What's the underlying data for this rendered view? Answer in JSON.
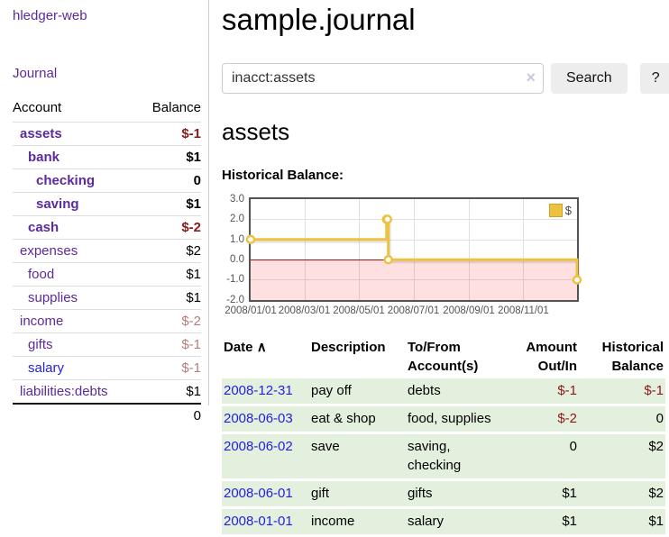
{
  "colors": {
    "link_purple": "#5c2a9e",
    "link_blue": "#2222dd",
    "negative_strong": "#8b1a1a",
    "negative_muted": "#b97c7c",
    "register_row_green": "#e4f0de",
    "chart_series_gold": "#edc240",
    "chart_negative_fill": "rgba(255,0,0,0.12)",
    "chart_zero_line": "#951515",
    "chart_border": "#545454"
  },
  "app": {
    "title": "hledger-web"
  },
  "sidebar": {
    "journal_link": "Journal",
    "accounts": {
      "headers": [
        "Account",
        "Balance"
      ],
      "rows": [
        {
          "account": "assets",
          "balance": "$-1",
          "indent": 1,
          "bold": true,
          "account_color": "purple",
          "balance_class": "neg-strong"
        },
        {
          "account": "bank",
          "balance": "$1",
          "indent": 2,
          "bold": true,
          "account_color": "purple",
          "balance_class": ""
        },
        {
          "account": "checking",
          "balance": "0",
          "indent": 3,
          "bold": true,
          "account_color": "purple",
          "balance_class": ""
        },
        {
          "account": "saving",
          "balance": "$1",
          "indent": 3,
          "bold": true,
          "account_color": "purple",
          "balance_class": ""
        },
        {
          "account": "cash",
          "balance": "$-2",
          "indent": 2,
          "bold": true,
          "account_color": "purple",
          "balance_class": "neg-strong"
        },
        {
          "account": "expenses",
          "balance": "$2",
          "indent": 1,
          "bold": false,
          "account_color": "purple",
          "balance_class": ""
        },
        {
          "account": "food",
          "balance": "$1",
          "indent": 2,
          "bold": false,
          "account_color": "purple",
          "balance_class": ""
        },
        {
          "account": "supplies",
          "balance": "$1",
          "indent": 2,
          "bold": false,
          "account_color": "purple",
          "balance_class": ""
        },
        {
          "account": "income",
          "balance": "$-2",
          "indent": 1,
          "bold": false,
          "account_color": "purple",
          "balance_class": "neg-muted"
        },
        {
          "account": "gifts",
          "balance": "$-1",
          "indent": 2,
          "bold": false,
          "account_color": "purple",
          "balance_class": "neg-muted"
        },
        {
          "account": "salary",
          "balance": "$-1",
          "indent": 2,
          "bold": false,
          "account_color": "blue",
          "balance_class": "neg-muted"
        },
        {
          "account": "liabilities:debts",
          "balance": "$1",
          "indent": 1,
          "bold": false,
          "account_color": "purple",
          "balance_class": ""
        }
      ],
      "total": "0"
    }
  },
  "main": {
    "title": "sample.journal",
    "search": {
      "value": "inacct:assets",
      "clear_icon": "×",
      "search_button": "Search",
      "help_button": "?"
    },
    "account_heading": "assets",
    "register": {
      "headers": [
        "Date",
        "Description",
        "To/From Account(s)",
        "Amount Out/In",
        "Historical Balance"
      ],
      "sort_icon": "∧",
      "rows": [
        {
          "date": "2008-12-31",
          "description": "pay off",
          "accounts": "debts",
          "amount": "$-1",
          "amount_neg": true,
          "balance": "$-1",
          "balance_neg": true
        },
        {
          "date": "2008-06-03",
          "description": "eat & shop",
          "accounts": "food, supplies",
          "amount": "$-2",
          "amount_neg": true,
          "balance": "0",
          "balance_neg": false
        },
        {
          "date": "2008-06-02",
          "description": "save",
          "accounts": "saving, checking",
          "amount": "0",
          "amount_neg": false,
          "balance": "$2",
          "balance_neg": false
        },
        {
          "date": "2008-06-01",
          "description": "gift",
          "accounts": "gifts",
          "amount": "$1",
          "amount_neg": false,
          "balance": "$2",
          "balance_neg": false
        },
        {
          "date": "2008-01-01",
          "description": "income",
          "accounts": "salary",
          "amount": "$1",
          "amount_neg": false,
          "balance": "$1",
          "balance_neg": false
        }
      ]
    }
  },
  "chart_data": {
    "type": "line",
    "step": true,
    "title": "Historical Balance:",
    "xlim": [
      "2008-01-01",
      "2008-12-31"
    ],
    "ylim": [
      -2,
      3
    ],
    "x_ticks": [
      "2008/01/01",
      "2008/03/01",
      "2008/05/01",
      "2008/07/01",
      "2008/09/01",
      "2008/11/01"
    ],
    "y_ticks": [
      "3.0",
      "2.0",
      "1.0",
      "0.0",
      "-1.0",
      "-2.0"
    ],
    "grid": true,
    "legend": {
      "label": "$",
      "position": "top-right"
    },
    "series": [
      {
        "name": "$",
        "color": "#edc240",
        "points": [
          [
            "2008-01-01",
            1
          ],
          [
            "2008-06-01",
            2
          ],
          [
            "2008-06-02",
            2
          ],
          [
            "2008-06-03",
            0
          ],
          [
            "2008-12-31",
            -1
          ]
        ]
      }
    ]
  }
}
